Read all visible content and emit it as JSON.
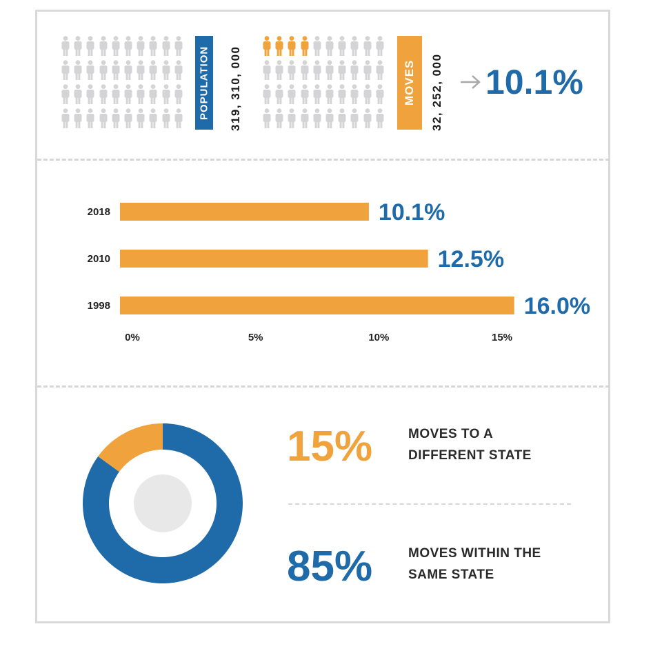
{
  "top": {
    "population_label": "POPULATION",
    "population_value": "319, 310, 000",
    "moves_label": "MOVES",
    "moves_value": "32, 252, 000",
    "result": "10.1%"
  },
  "chart_data": {
    "type": "bar",
    "orientation": "horizontal",
    "categories": [
      "2018",
      "2010",
      "1998"
    ],
    "values": [
      10.1,
      12.5,
      16.0
    ],
    "value_labels": [
      "10.1%",
      "12.5%",
      "16.0%"
    ],
    "xticks": [
      "0%",
      "5%",
      "10%",
      "15%"
    ],
    "xlim": [
      0,
      15
    ],
    "title": "",
    "xlabel": "",
    "ylabel": ""
  },
  "split": {
    "type": "pie",
    "different_state": {
      "pct": 15,
      "label": "15%",
      "text_line1": "MOVES TO A",
      "text_line2": "DIFFERENT STATE"
    },
    "same_state": {
      "pct": 85,
      "label": "85%",
      "text_line1": "MOVES WITHIN THE",
      "text_line2": "SAME STATE"
    }
  },
  "colors": {
    "blue": "#1f6aa8",
    "orange": "#f0a23c",
    "gray_person": "#d4d4d6",
    "center_gray": "#e8e8e8"
  },
  "icons": {
    "person": "person-icon",
    "arrow": "arrow-right-icon"
  }
}
